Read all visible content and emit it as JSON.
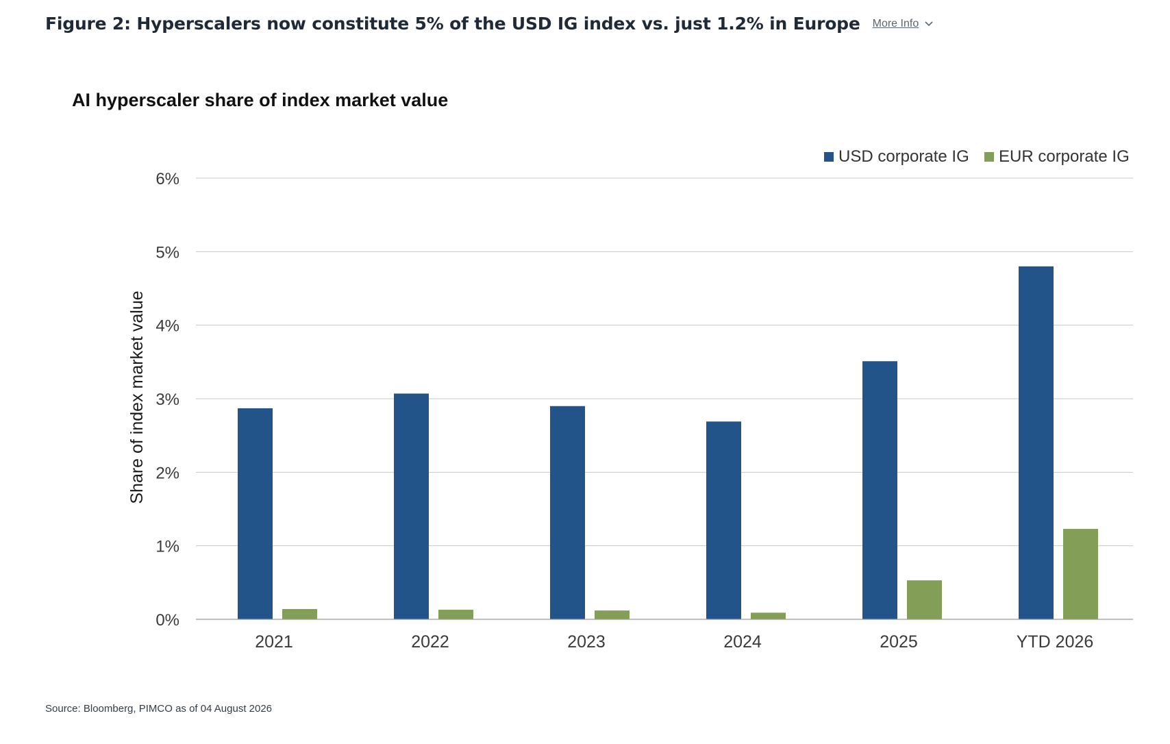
{
  "figure": {
    "title": "Figure 2: Hyperscalers now constitute 5% of the USD IG index vs. just 1.2% in Europe",
    "more_info_label": "More Info",
    "chevron_icon": "chevron-down-icon",
    "source": "Source: Bloomberg, PIMCO as of 04 August 2026"
  },
  "colors": {
    "usd": "#22548a",
    "eur": "#839e56",
    "grid": "#c8c8c8",
    "axis_text": "#3a3a3a"
  },
  "chart_data": {
    "type": "bar",
    "title": "AI hyperscaler share of index market value",
    "xlabel": "",
    "ylabel": "Share of index market value",
    "categories": [
      "2021",
      "2022",
      "2023",
      "2024",
      "2025",
      "YTD 2026"
    ],
    "series": [
      {
        "name": "USD corporate IG",
        "values": [
          2.87,
          3.07,
          2.9,
          2.69,
          3.51,
          4.8
        ]
      },
      {
        "name": "EUR corporate IG",
        "values": [
          0.14,
          0.13,
          0.12,
          0.09,
          0.53,
          1.23
        ]
      }
    ],
    "ylim": [
      0,
      6
    ],
    "yticks": [
      0,
      1,
      2,
      3,
      4,
      5,
      6
    ],
    "ytick_labels": [
      "0%",
      "1%",
      "2%",
      "3%",
      "4%",
      "5%",
      "6%"
    ],
    "grid": true,
    "legend_position": "top-right"
  }
}
